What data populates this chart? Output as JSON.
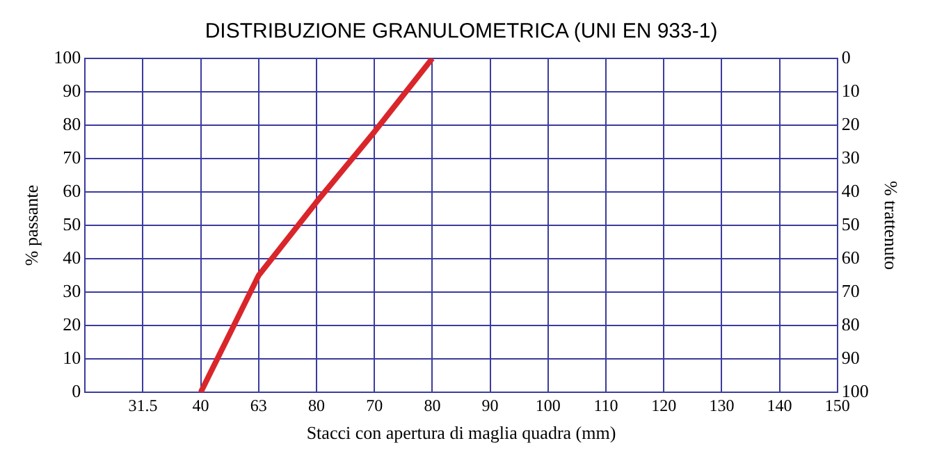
{
  "chart_data": {
    "type": "line",
    "title": "DISTRIBUZIONE GRANULOMETRICA (UNI EN 933-1)",
    "xlabel": "Stacci con apertura di maglia quadra (mm)",
    "ylabel": "% passante",
    "y2label": "% trattenuto",
    "categories": [
      null,
      "31.5",
      "40",
      "63",
      "80",
      "70",
      "80",
      "90",
      "100",
      "110",
      "120",
      "130",
      "140",
      "150"
    ],
    "ylim": [
      0,
      100
    ],
    "yticks": [
      0,
      10,
      20,
      30,
      40,
      50,
      60,
      70,
      80,
      90,
      100
    ],
    "y2lim": [
      100,
      0
    ],
    "y2ticks": [
      0,
      10,
      20,
      30,
      40,
      50,
      60,
      70,
      80,
      90,
      100
    ],
    "series": [
      {
        "color": "#d9262a",
        "values": [
          null,
          null,
          0,
          35,
          57,
          78,
          100,
          null,
          null,
          null,
          null,
          null,
          null,
          null
        ]
      }
    ],
    "grid": true,
    "legend": false,
    "marker": "none",
    "line_style": "solid"
  }
}
